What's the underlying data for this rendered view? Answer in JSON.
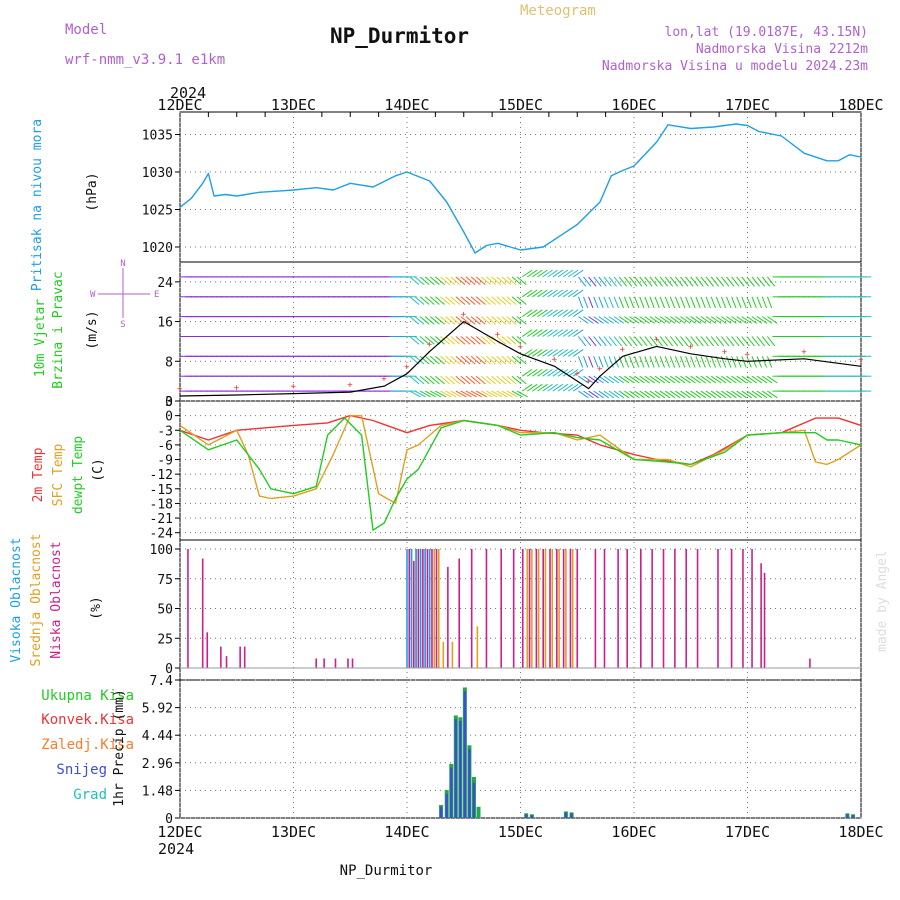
{
  "header": {
    "model_label": "Model",
    "model_name": "wrf-nmm_v3.9.1 e1km",
    "title": "NP_Durmitor",
    "meteogram_label": "Meteogram",
    "coords": "lon,lat (19.0187E, 43.15N)",
    "elevation": "Nadmorska Visina 2212m",
    "model_elevation": "Nadmorska Visina u modelu 2024.23m",
    "footer_station": "NP_Durmitor",
    "credit": "made by Angel"
  },
  "colors": {
    "pressure": "#1ea0e6",
    "temp2m": "#ee3333",
    "sfc_temp": "#e0a020",
    "dewpt": "#22cc22",
    "high_cloud": "#1ea0e6",
    "mid_cloud": "#e0a020",
    "low_cloud": "#cc1f8f",
    "total_precip": "#22aa44",
    "convective": "#ee3333",
    "frozen": "#ff7a2a",
    "snow": "#3a4fd6",
    "graupel": "#22c0b8",
    "model_purple": "#b060d0"
  },
  "time_axis": {
    "year": "2024",
    "ticks": [
      "12DEC",
      "13DEC",
      "14DEC",
      "15DEC",
      "16DEC",
      "17DEC",
      "18DEC"
    ]
  },
  "panels": {
    "pressure": {
      "label": "Pritisak na nivou mora",
      "unit": "(hPa)"
    },
    "wind": {
      "label1": "10m Vjetar",
      "label2": "Brzina i Pravac",
      "unit": "(m/s)",
      "compass": [
        "N",
        "E",
        "S",
        "W"
      ]
    },
    "temp": {
      "label1": "2m Temp",
      "label2": "SFC Temp",
      "label3": "dewpt Temp",
      "unit": "(C)"
    },
    "cloud": {
      "label1": "Visoka Oblacnost",
      "label2": "Srednja Oblacnost",
      "label3": "Niska Oblacnost",
      "unit": "(%)"
    },
    "precip": {
      "legend": [
        "Ukupna Kisa",
        "Konvek.Kisa",
        "Zaledj.Kisa",
        "Snijeg",
        "Grad"
      ],
      "ylabel": "1hr Precip (mm)"
    }
  },
  "chart_data": [
    {
      "type": "line",
      "ylabel": "(hPa)",
      "x_unit": "days since 12DEC 00Z",
      "ylim": [
        1018,
        1038
      ],
      "yticks": [
        1020,
        1025,
        1030,
        1035
      ],
      "grid": true,
      "series": [
        {
          "name": "Pritisak na nivou mora",
          "x": [
            0,
            0.1,
            0.2,
            0.25,
            0.3,
            0.4,
            0.5,
            0.7,
            0.9,
            1.0,
            1.2,
            1.35,
            1.5,
            1.7,
            1.9,
            2.0,
            2.2,
            2.35,
            2.5,
            2.6,
            2.7,
            2.8,
            3.0,
            3.2,
            3.35,
            3.5,
            3.7,
            3.8,
            3.9,
            4.0,
            4.2,
            4.3,
            4.5,
            4.7,
            4.9,
            5.0,
            5.1,
            5.3,
            5.5,
            5.7,
            5.8,
            5.9,
            6.0
          ],
          "y": [
            1025.3,
            1026.5,
            1028.5,
            1029.8,
            1026.8,
            1027.0,
            1026.8,
            1027.3,
            1027.5,
            1027.6,
            1027.9,
            1027.6,
            1028.5,
            1028.0,
            1029.5,
            1030.0,
            1028.8,
            1026.0,
            1022.0,
            1019.2,
            1020.2,
            1020.5,
            1019.6,
            1020.0,
            1021.5,
            1023.0,
            1026.0,
            1029.5,
            1030.2,
            1030.8,
            1034.0,
            1036.3,
            1035.8,
            1036.0,
            1036.4,
            1036.2,
            1035.4,
            1034.8,
            1032.5,
            1031.5,
            1031.5,
            1032.3,
            1032.0
          ]
        }
      ]
    },
    {
      "type": "line",
      "ylabel": "(m/s)",
      "x_unit": "days since 12DEC 00Z",
      "ylim": [
        0,
        28
      ],
      "yticks": [
        0,
        8,
        16,
        24
      ],
      "grid": true,
      "series": [
        {
          "name": "10m Vjetar",
          "x": [
            0,
            0.5,
            1.0,
            1.5,
            1.8,
            2.0,
            2.2,
            2.5,
            2.8,
            3.0,
            3.3,
            3.5,
            3.6,
            3.7,
            3.9,
            4.2,
            4.5,
            4.8,
            5.0,
            5.5,
            6.0
          ],
          "y": [
            1,
            1.2,
            1.5,
            1.8,
            3,
            5.5,
            10,
            16,
            12,
            9.5,
            7,
            4,
            2.5,
            5,
            9,
            11,
            9.5,
            8.5,
            8,
            8.5,
            7
          ]
        }
      ]
    },
    {
      "type": "line",
      "ylabel": "(C)",
      "x_unit": "days since 12DEC 00Z",
      "ylim": [
        -25.5,
        3
      ],
      "yticks": [
        -24,
        -21,
        -18,
        -15,
        -12,
        -9,
        -6,
        -3,
        0,
        3
      ],
      "grid": true,
      "series": [
        {
          "name": "2m Temp",
          "x": [
            0,
            0.25,
            0.5,
            1.0,
            1.3,
            1.5,
            1.7,
            2.0,
            2.2,
            2.5,
            2.8,
            3.0,
            3.2,
            3.5,
            3.7,
            4.0,
            4.2,
            4.5,
            4.7,
            5.0,
            5.3,
            5.6,
            5.8,
            6.0
          ],
          "y": [
            -3,
            -5,
            -3,
            -2,
            -1.5,
            0,
            -1,
            -3.5,
            -2,
            -1,
            -2,
            -3,
            -3.5,
            -4,
            -6,
            -8,
            -9,
            -10,
            -8,
            -4,
            -3.5,
            -0.5,
            -0.5,
            -2
          ]
        },
        {
          "name": "SFC Temp",
          "x": [
            0,
            0.25,
            0.5,
            0.6,
            0.7,
            0.8,
            1.0,
            1.2,
            1.35,
            1.5,
            1.6,
            1.75,
            1.9,
            2.0,
            2.1,
            2.3,
            2.5,
            2.8,
            3.0,
            3.3,
            3.5,
            3.7,
            4.0,
            4.3,
            4.5,
            4.8,
            5.0,
            5.3,
            5.5,
            5.6,
            5.7,
            5.8,
            6.0
          ],
          "y": [
            -2,
            -6,
            -3,
            -8,
            -16.5,
            -17,
            -16.5,
            -15,
            -8,
            0,
            0,
            -16,
            -18,
            -7,
            -6,
            -2,
            -1,
            -2,
            -3.5,
            -3.5,
            -5,
            -4,
            -9,
            -9,
            -10.5,
            -7,
            -4,
            -3.5,
            -3,
            -9.5,
            -10,
            -9,
            -6
          ]
        },
        {
          "name": "dewpt Temp",
          "x": [
            0,
            0.25,
            0.5,
            0.7,
            0.8,
            1.0,
            1.2,
            1.3,
            1.45,
            1.6,
            1.7,
            1.8,
            1.9,
            2.0,
            2.1,
            2.3,
            2.5,
            2.8,
            3.0,
            3.3,
            3.5,
            3.7,
            4.0,
            4.3,
            4.5,
            4.8,
            5.0,
            5.3,
            5.5,
            5.6,
            5.7,
            5.8,
            6.0
          ],
          "y": [
            -3,
            -7,
            -5,
            -11,
            -15,
            -16,
            -14.5,
            -4,
            -0.5,
            -4,
            -23.5,
            -22,
            -17,
            -13,
            -11,
            -2.5,
            -1,
            -2,
            -4,
            -3.5,
            -4.5,
            -5,
            -9,
            -9.5,
            -10,
            -7.5,
            -4,
            -3.5,
            -3.5,
            -3.5,
            -5,
            -5,
            -6
          ]
        }
      ]
    },
    {
      "type": "bar",
      "ylabel": "(%)",
      "x_unit": "days since 12DEC 00Z",
      "ylim": [
        0,
        100
      ],
      "yticks": [
        0,
        25,
        50,
        75,
        100
      ],
      "grid": true,
      "series": [
        {
          "name": "Niska Oblacnost",
          "x": [
            0.07,
            0.2,
            0.24,
            0.36,
            0.41,
            0.53,
            0.57,
            1.2,
            1.27,
            1.37,
            1.48,
            1.52,
            2.02,
            2.06,
            2.1,
            2.14,
            2.18,
            2.22,
            2.26,
            2.36,
            2.46,
            2.57,
            2.7,
            2.83,
            2.94,
            3.02,
            3.08,
            3.14,
            3.2,
            3.26,
            3.32,
            3.38,
            3.44,
            3.5,
            3.66,
            3.74,
            3.86,
            3.94,
            4.06,
            4.16,
            4.26,
            4.36,
            4.46,
            4.56,
            4.74,
            4.86,
            4.96,
            5.04,
            5.12,
            5.15,
            5.55,
            6.0
          ],
          "y": [
            100,
            92,
            30,
            18,
            10,
            18,
            18,
            8,
            8,
            8,
            8,
            8,
            100,
            90,
            100,
            100,
            100,
            100,
            100,
            85,
            92,
            100,
            100,
            100,
            100,
            100,
            100,
            100,
            100,
            100,
            100,
            100,
            100,
            100,
            100,
            100,
            100,
            100,
            100,
            100,
            100,
            100,
            100,
            100,
            100,
            100,
            100,
            100,
            88,
            80,
            8,
            0
          ]
        },
        {
          "name": "Srednja Oblacnost",
          "x": [
            2.04,
            2.08,
            2.12,
            2.16,
            2.2,
            2.24,
            2.28,
            2.32,
            2.4,
            2.62,
            3.06,
            3.1,
            3.16,
            3.22,
            3.28,
            3.34,
            3.4,
            3.46
          ],
          "y": [
            100,
            100,
            100,
            100,
            100,
            100,
            100,
            22,
            22,
            35,
            100,
            100,
            100,
            100,
            100,
            100,
            100,
            100
          ]
        },
        {
          "name": "Visoka Oblacnost",
          "x": [
            2.0,
            2.04,
            2.08,
            2.12,
            2.16,
            2.2
          ],
          "y": [
            100,
            100,
            100,
            100,
            100,
            100
          ]
        }
      ]
    },
    {
      "type": "bar",
      "ylabel": "1hr Precip (mm)",
      "x_unit": "days since 12DEC 00Z",
      "ylim": [
        0,
        7.4
      ],
      "yticks": [
        0,
        1.48,
        2.96,
        4.44,
        5.92,
        7.4
      ],
      "grid": true,
      "series": [
        {
          "name": "Ukupna Kisa",
          "x": [
            2.3,
            2.35,
            2.39,
            2.43,
            2.47,
            2.51,
            2.55,
            2.59,
            2.63,
            3.05,
            3.1,
            3.4,
            3.45,
            5.88,
            5.93
          ],
          "y": [
            0.7,
            1.5,
            2.9,
            5.5,
            5.4,
            7.0,
            3.9,
            2.2,
            0.6,
            0.25,
            0.2,
            0.35,
            0.3,
            0.25,
            0.2
          ]
        },
        {
          "name": "Snijeg",
          "x": [
            2.3,
            2.35,
            2.39,
            2.43,
            2.47,
            2.51,
            2.55,
            2.59,
            3.05,
            3.1,
            3.4,
            3.45,
            5.88,
            5.93
          ],
          "y": [
            0.6,
            1.3,
            2.7,
            5.3,
            5.2,
            6.8,
            3.7,
            1.9,
            0.2,
            0.15,
            0.3,
            0.25,
            0.2,
            0.15
          ]
        }
      ]
    }
  ]
}
